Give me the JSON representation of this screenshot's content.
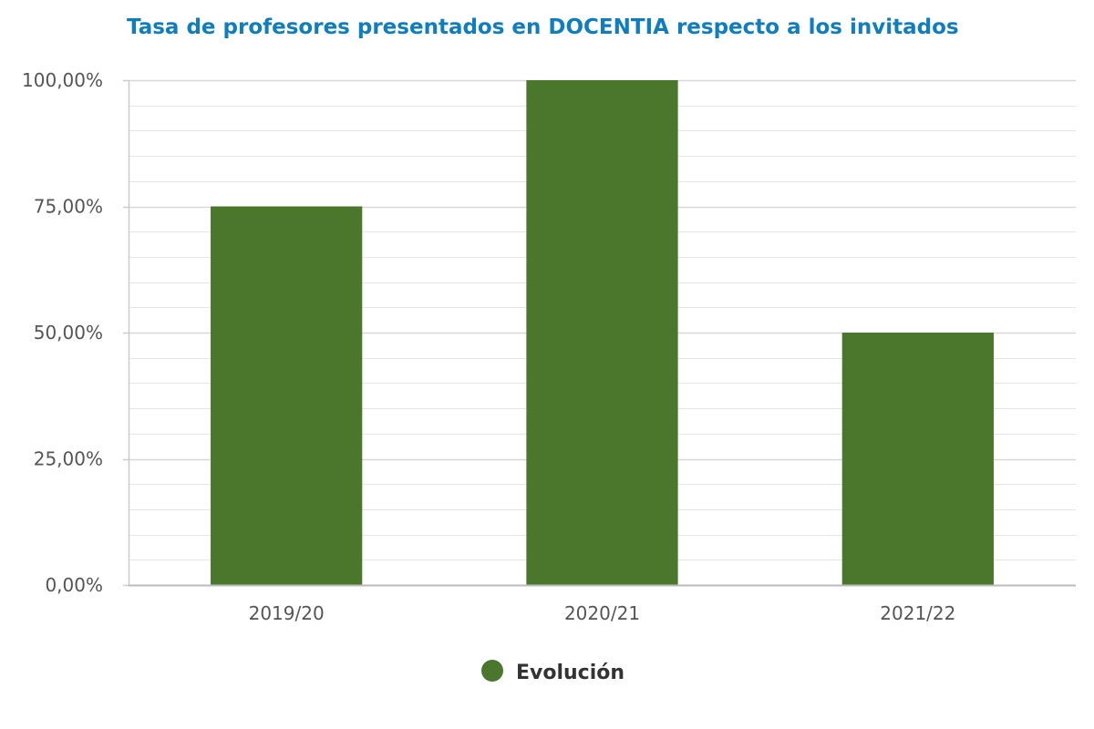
{
  "chart_data": {
    "type": "bar",
    "title": "Tasa de profesores presentados en DOCENTIA respecto a los invitados",
    "categories": [
      "2019/20",
      "2020/21",
      "2021/22"
    ],
    "series": [
      {
        "name": "Evolución",
        "values": [
          75,
          100,
          50
        ],
        "color": "#4b772d"
      }
    ],
    "ylim": [
      0,
      100
    ],
    "yticks": [
      0,
      25,
      50,
      75,
      100
    ],
    "ytick_labels": [
      "0,00%",
      "25,00%",
      "50,00%",
      "75,00%",
      "100,00%"
    ],
    "xlabel": "",
    "ylabel": "",
    "grid": true,
    "legend_position": "bottom"
  }
}
